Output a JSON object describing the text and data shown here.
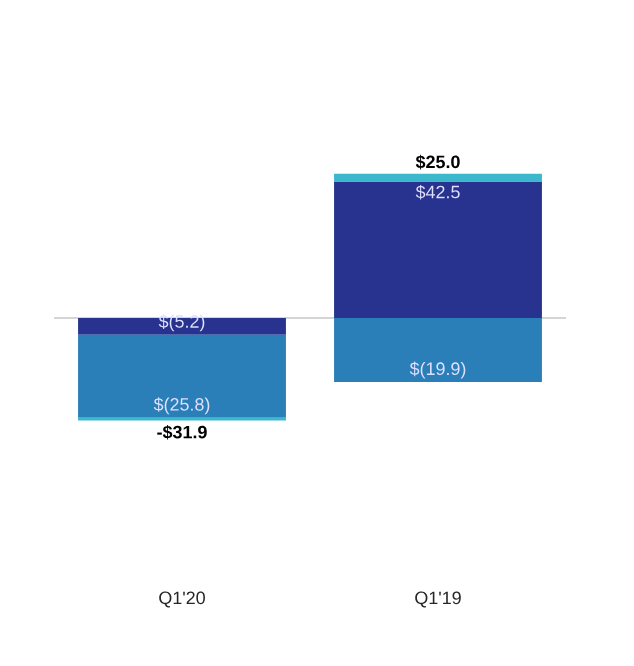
{
  "chart_data": {
    "type": "bar",
    "stacked": true,
    "categories": [
      "Q1'20",
      "Q1'19"
    ],
    "series": [
      {
        "color": "#27338f",
        "values": [
          -5.2,
          42.5
        ],
        "value_labels": [
          "$(5.2)",
          "$42.5"
        ]
      },
      {
        "color": "#2b7fb8",
        "values": [
          -25.8,
          -19.9
        ],
        "value_labels": [
          "$(25.8)",
          "$(19.9)"
        ]
      },
      {
        "color": "#3cb8cc",
        "values": [
          -0.9,
          2.4
        ]
      }
    ],
    "totals": [
      "-$31.9",
      "$25.0"
    ]
  }
}
